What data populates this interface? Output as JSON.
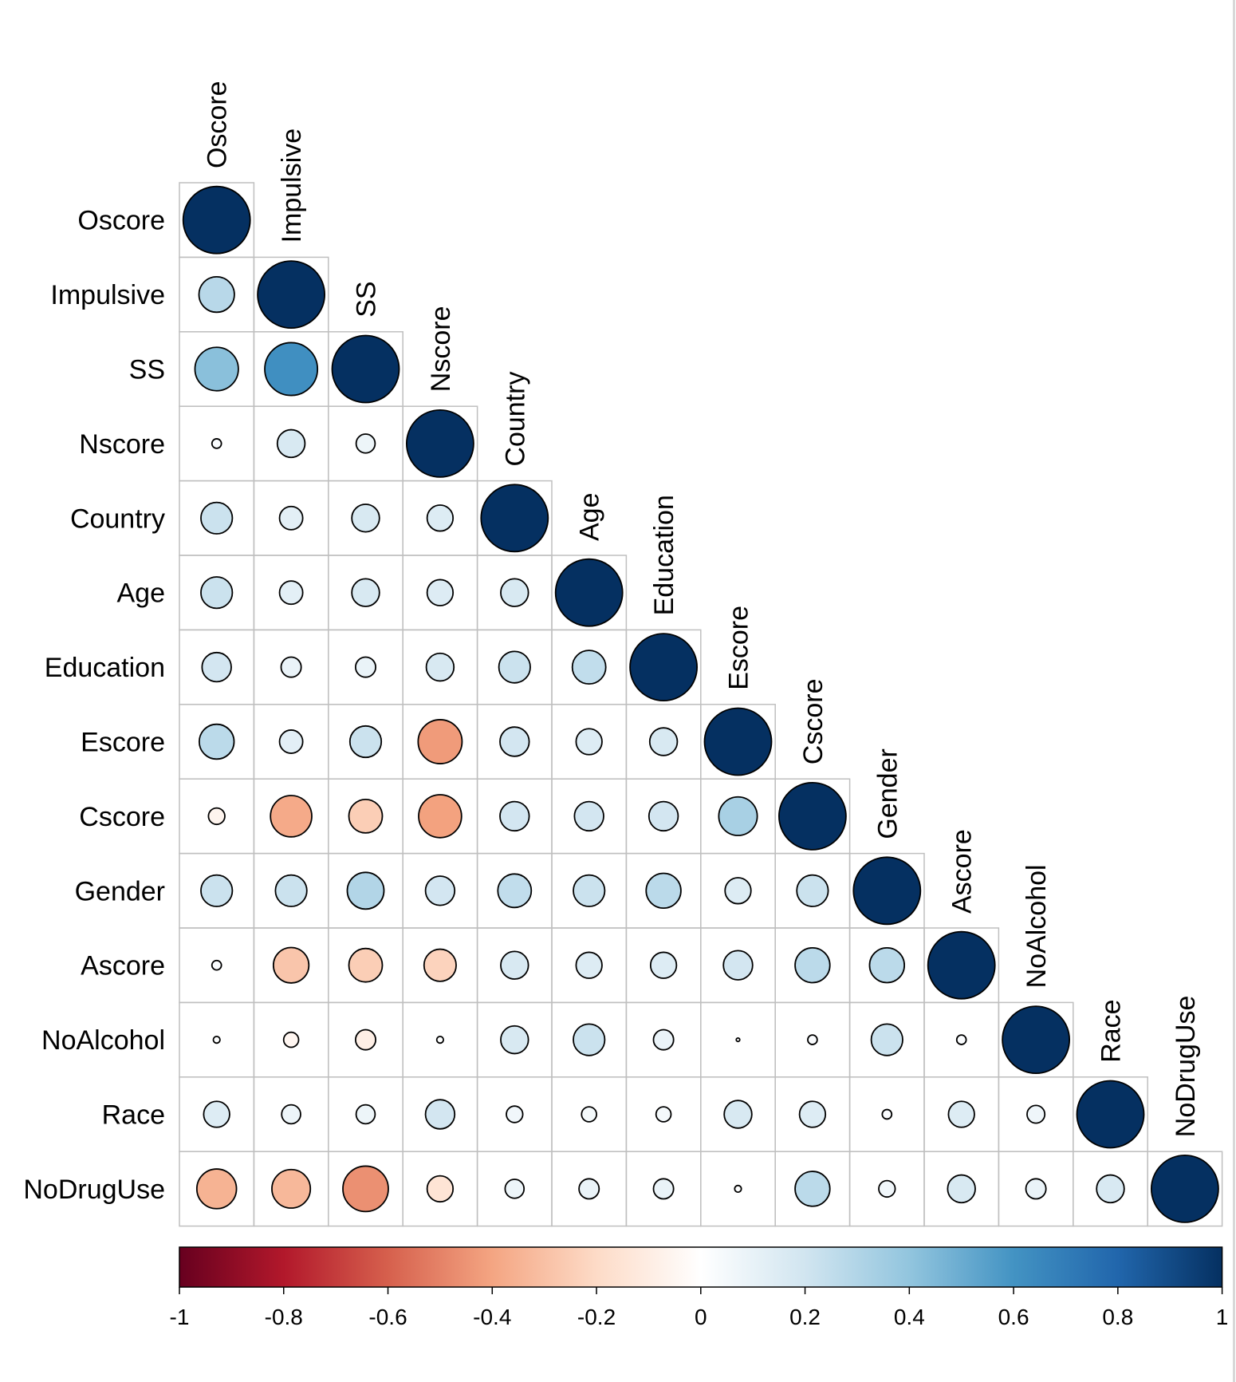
{
  "chart_data": {
    "type": "heatmap",
    "subtype": "correlation-circle-lower-triangle",
    "variables": [
      "Oscore",
      "Impulsive",
      "SS",
      "Nscore",
      "Country",
      "Age",
      "Education",
      "Escore",
      "Cscore",
      "Gender",
      "Ascore",
      "NoAlcohol",
      "Race",
      "NoDrugUse"
    ],
    "matrix_lower": [
      [
        1.0
      ],
      [
        0.28,
        1.0
      ],
      [
        0.42,
        0.62,
        1.0
      ],
      [
        0.02,
        0.17,
        0.08,
        1.0
      ],
      [
        0.22,
        0.12,
        0.17,
        0.15,
        1.0
      ],
      [
        0.22,
        0.12,
        0.17,
        0.15,
        0.17,
        1.0
      ],
      [
        0.19,
        0.09,
        0.09,
        0.17,
        0.22,
        0.25,
        1.0
      ],
      [
        0.27,
        0.12,
        0.22,
        -0.43,
        0.19,
        0.15,
        0.17,
        1.0
      ],
      [
        -0.06,
        -0.38,
        -0.25,
        -0.41,
        0.19,
        0.19,
        0.19,
        0.33,
        1.0
      ],
      [
        0.22,
        0.22,
        0.3,
        0.19,
        0.25,
        0.22,
        0.27,
        0.15,
        0.22,
        1.0
      ],
      [
        0.02,
        -0.28,
        -0.25,
        -0.23,
        0.17,
        0.15,
        0.15,
        0.19,
        0.27,
        0.27,
        1.0
      ],
      [
        0.01,
        -0.05,
        -0.09,
        0.01,
        0.17,
        0.22,
        0.09,
        0.001,
        0.02,
        0.22,
        0.02,
        1.0
      ],
      [
        0.15,
        0.08,
        0.08,
        0.19,
        0.06,
        0.05,
        0.05,
        0.17,
        0.15,
        0.02,
        0.15,
        0.07,
        1.0
      ],
      [
        -0.35,
        -0.33,
        -0.46,
        -0.15,
        0.08,
        0.09,
        0.09,
        0.01,
        0.27,
        0.06,
        0.17,
        0.09,
        0.17,
        1.0
      ]
    ],
    "colorbar": {
      "range": [
        -1,
        1
      ],
      "tick_labels": [
        "-1",
        "-0.8",
        "-0.6",
        "-0.4",
        "-0.2",
        "0",
        "0.2",
        "0.4",
        "0.6",
        "0.8",
        "1"
      ]
    },
    "colors": {
      "neg_strong": "#67001F",
      "neg": "#B2182B",
      "neg_mid": "#D6604D",
      "neg_light": "#F4A582",
      "neg_pale": "#FDDBC7",
      "neutral": "#FFFFFF",
      "pos_pale": "#D1E5F0",
      "pos_light": "#92C5DE",
      "pos_mid": "#4393C3",
      "pos": "#2166AC",
      "pos_strong": "#053061",
      "grid": "#bfbfbf"
    }
  }
}
